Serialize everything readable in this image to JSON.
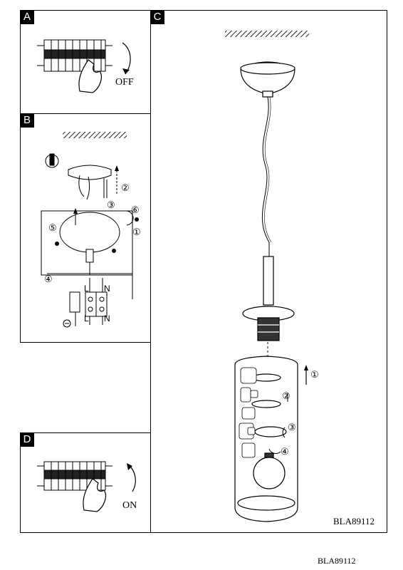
{
  "panels": {
    "a": {
      "label": "A",
      "state_text": "OFF"
    },
    "b": {
      "label": "B",
      "step_1": "①",
      "step_2": "②",
      "step_3": "③",
      "step_4": "④",
      "step_5": "⑤",
      "step_6": "⑥",
      "terminal_l_top": "L",
      "terminal_n_top": "N",
      "terminal_l_bottom": "L",
      "terminal_n_bottom": "N"
    },
    "c": {
      "label": "C",
      "step_1": "①",
      "step_2": "②",
      "step_3": "③",
      "step_4": "④",
      "model_code": "BLA89112"
    },
    "d": {
      "label": "D",
      "state_text": "ON"
    }
  },
  "footer": {
    "model_code": "BLA89112"
  },
  "colors": {
    "ink": "#000000",
    "paper": "#ffffff",
    "hatch": "#222222"
  }
}
